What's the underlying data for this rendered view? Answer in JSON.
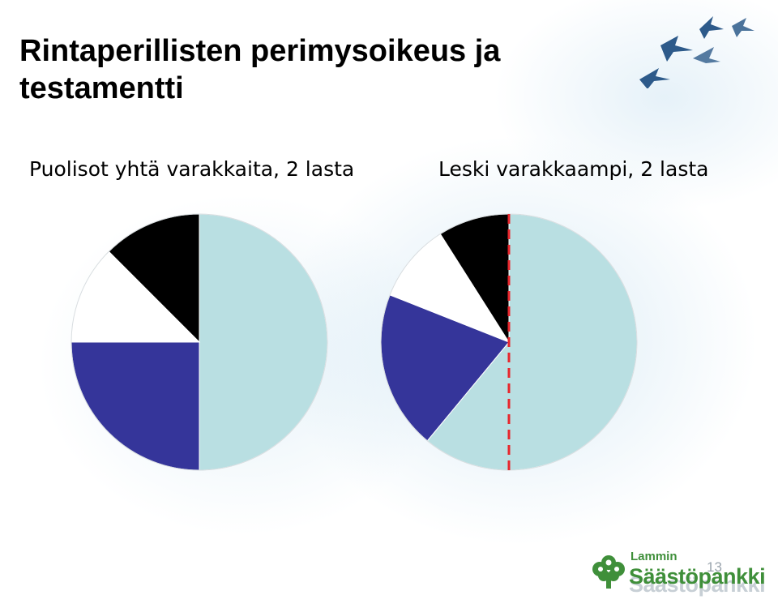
{
  "title": "Rintaperillisten perimysoikeus ja testamentti",
  "page_number": "13",
  "logo": {
    "small_text": "Lammin",
    "big_text": "Säästöpankki"
  },
  "icons": {
    "decoration": "flying-birds-icon",
    "logo": "tree-icon"
  },
  "colors": {
    "light_blue": "#b9dfe2",
    "dark_blue": "#35359a",
    "white": "#ffffff",
    "black": "#000000",
    "divider": "#e8262c"
  },
  "chart_data": [
    {
      "type": "pie",
      "title": "Puolisot yhtä varakkaita, 2 lasta",
      "slices": [
        {
          "value": 50,
          "color": "#b9dfe2"
        },
        {
          "value": 25,
          "color": "#35359a"
        },
        {
          "value": 12.5,
          "color": "#ffffff"
        },
        {
          "value": 12.5,
          "color": "#000000"
        }
      ],
      "start": "12 o'clock",
      "direction": "clockwise"
    },
    {
      "type": "pie",
      "title": "Leski varakkaampi, 2 lasta",
      "slices": [
        {
          "value": 61,
          "color": "#b9dfe2"
        },
        {
          "value": 20,
          "color": "#35359a"
        },
        {
          "value": 10,
          "color": "#ffffff"
        },
        {
          "value": 9,
          "color": "#000000"
        }
      ],
      "start": "12 o'clock",
      "direction": "clockwise",
      "annotation": "dashed red vertical line through center (50% mark)"
    }
  ]
}
